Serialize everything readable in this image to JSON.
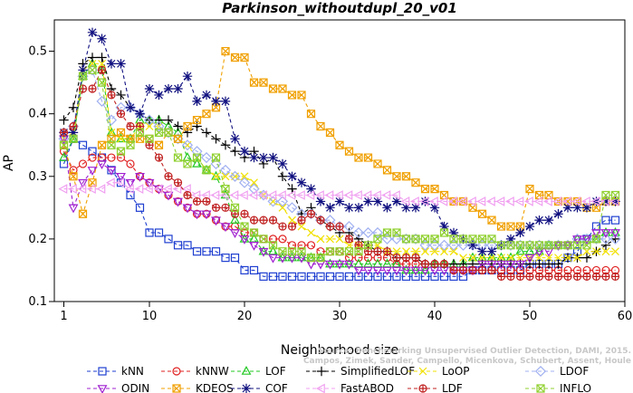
{
  "chart_data": {
    "type": "line",
    "title": "Parkinson_withoutdupl_20_v01",
    "xlabel": "Neighborhood size",
    "ylabel": "AP",
    "xlim": [
      0,
      60
    ],
    "ylim": [
      0.1,
      0.55
    ],
    "xticks": [
      1,
      10,
      20,
      30,
      40,
      50,
      60
    ],
    "yticks": [
      0.1,
      0.2,
      0.3,
      0.4,
      0.5
    ],
    "grid": false,
    "legend_position": "bottom",
    "watermark": [
      "Source: Benchmarking Unsupervised Outlier Detection, DAMI, 2015.",
      "Campos, Zimek, Sander, Campello, Micenkova, Schubert, Assent, Houle"
    ],
    "series": [
      {
        "name": "kNN",
        "color": "#1f3fd0",
        "marker": "square",
        "values": [
          0.32,
          0.36,
          0.35,
          0.34,
          0.33,
          0.31,
          0.29,
          0.27,
          0.25,
          0.21,
          0.21,
          0.2,
          0.19,
          0.19,
          0.18,
          0.18,
          0.18,
          0.17,
          0.17,
          0.15,
          0.15,
          0.14,
          0.14,
          0.14,
          0.14,
          0.14,
          0.14,
          0.14,
          0.14,
          0.14,
          0.14,
          0.14,
          0.14,
          0.14,
          0.14,
          0.14,
          0.14,
          0.14,
          0.14,
          0.14,
          0.14,
          0.14,
          0.14,
          0.15,
          0.15,
          0.15,
          0.15,
          0.15,
          0.15,
          0.16,
          0.16,
          0.16,
          0.16,
          0.17,
          0.18,
          0.2,
          0.22,
          0.23,
          0.23
        ]
      },
      {
        "name": "kNNW",
        "color": "#e02020",
        "marker": "circle",
        "values": [
          0.34,
          0.31,
          0.32,
          0.33,
          0.33,
          0.33,
          0.33,
          0.32,
          0.3,
          0.29,
          0.28,
          0.27,
          0.26,
          0.25,
          0.24,
          0.24,
          0.23,
          0.22,
          0.22,
          0.21,
          0.21,
          0.2,
          0.2,
          0.2,
          0.19,
          0.19,
          0.19,
          0.18,
          0.18,
          0.18,
          0.17,
          0.17,
          0.17,
          0.17,
          0.17,
          0.16,
          0.16,
          0.16,
          0.16,
          0.16,
          0.16,
          0.15,
          0.15,
          0.15,
          0.15,
          0.15,
          0.15,
          0.15,
          0.15,
          0.15,
          0.15,
          0.15,
          0.15,
          0.15,
          0.15,
          0.15,
          0.15,
          0.15,
          0.15
        ]
      },
      {
        "name": "LOF",
        "color": "#22c822",
        "marker": "triangle-up",
        "values": [
          0.33,
          0.36,
          0.46,
          0.48,
          0.47,
          0.37,
          0.36,
          0.36,
          0.39,
          0.39,
          0.39,
          0.38,
          0.37,
          0.33,
          0.32,
          0.31,
          0.3,
          0.27,
          0.23,
          0.2,
          0.2,
          0.18,
          0.18,
          0.17,
          0.17,
          0.17,
          0.17,
          0.17,
          0.16,
          0.16,
          0.16,
          0.16,
          0.16,
          0.16,
          0.16,
          0.16,
          0.15,
          0.15,
          0.15,
          0.16,
          0.16,
          0.16,
          0.16,
          0.17,
          0.17,
          0.17,
          0.17,
          0.17,
          0.18,
          0.18,
          0.18,
          0.19,
          0.19,
          0.19,
          0.2,
          0.2,
          0.2,
          0.21,
          0.21
        ]
      },
      {
        "name": "SimplifiedLOF",
        "color": "#000000",
        "marker": "plus",
        "values": [
          0.39,
          0.41,
          0.48,
          0.49,
          0.49,
          0.44,
          0.43,
          0.41,
          0.4,
          0.39,
          0.39,
          0.39,
          0.38,
          0.37,
          0.38,
          0.37,
          0.36,
          0.35,
          0.34,
          0.33,
          0.34,
          0.32,
          0.33,
          0.3,
          0.28,
          0.24,
          0.25,
          0.23,
          0.22,
          0.21,
          0.21,
          0.2,
          0.19,
          0.18,
          0.18,
          0.17,
          0.17,
          0.17,
          0.16,
          0.16,
          0.16,
          0.16,
          0.16,
          0.16,
          0.16,
          0.16,
          0.16,
          0.16,
          0.16,
          0.16,
          0.16,
          0.16,
          0.16,
          0.17,
          0.17,
          0.17,
          0.18,
          0.19,
          0.2
        ]
      },
      {
        "name": "LoOP",
        "color": "#f0e000",
        "marker": "x",
        "values": [
          0.36,
          0.37,
          0.47,
          0.48,
          0.48,
          0.37,
          0.36,
          0.36,
          0.38,
          0.38,
          0.38,
          0.37,
          0.36,
          0.35,
          0.33,
          0.31,
          0.3,
          0.3,
          0.3,
          0.3,
          0.29,
          0.27,
          0.26,
          0.25,
          0.23,
          0.22,
          0.21,
          0.2,
          0.2,
          0.2,
          0.19,
          0.19,
          0.19,
          0.19,
          0.18,
          0.18,
          0.18,
          0.18,
          0.18,
          0.18,
          0.18,
          0.18,
          0.17,
          0.17,
          0.17,
          0.17,
          0.17,
          0.17,
          0.17,
          0.17,
          0.17,
          0.17,
          0.17,
          0.17,
          0.17,
          0.18,
          0.18,
          0.18,
          0.18
        ]
      },
      {
        "name": "LDOF",
        "color": "#a0b0f0",
        "marker": "diamond",
        "values": [
          0.36,
          0.38,
          0.46,
          0.47,
          0.42,
          0.39,
          0.41,
          0.41,
          0.4,
          0.39,
          0.38,
          0.37,
          0.36,
          0.35,
          0.34,
          0.33,
          0.32,
          0.31,
          0.3,
          0.29,
          0.28,
          0.27,
          0.26,
          0.26,
          0.25,
          0.24,
          0.24,
          0.23,
          0.23,
          0.22,
          0.22,
          0.21,
          0.21,
          0.21,
          0.2,
          0.2,
          0.2,
          0.2,
          0.19,
          0.19,
          0.19,
          0.19,
          0.19,
          0.19,
          0.19,
          0.19,
          0.19,
          0.19,
          0.19,
          0.19,
          0.19,
          0.19,
          0.19,
          0.19,
          0.2,
          0.2,
          0.2,
          0.2,
          0.2
        ]
      },
      {
        "name": "ODIN",
        "color": "#a020d0",
        "marker": "triangle-down",
        "values": [
          0.36,
          0.25,
          0.29,
          0.31,
          0.32,
          0.31,
          0.3,
          0.29,
          0.3,
          0.29,
          0.28,
          0.27,
          0.26,
          0.25,
          0.24,
          0.24,
          0.23,
          0.22,
          0.21,
          0.2,
          0.19,
          0.18,
          0.17,
          0.17,
          0.17,
          0.17,
          0.16,
          0.16,
          0.16,
          0.16,
          0.16,
          0.15,
          0.15,
          0.15,
          0.15,
          0.15,
          0.15,
          0.15,
          0.15,
          0.15,
          0.15,
          0.15,
          0.15,
          0.15,
          0.16,
          0.16,
          0.16,
          0.16,
          0.16,
          0.17,
          0.18,
          0.18,
          0.19,
          0.19,
          0.2,
          0.2,
          0.21,
          0.21,
          0.21
        ]
      },
      {
        "name": "KDEOS",
        "color": "#f0a000",
        "marker": "square-x",
        "values": [
          0.35,
          0.3,
          0.24,
          0.29,
          0.35,
          0.36,
          0.37,
          0.36,
          0.36,
          0.36,
          0.35,
          0.37,
          0.36,
          0.38,
          0.39,
          0.4,
          0.41,
          0.5,
          0.49,
          0.49,
          0.45,
          0.45,
          0.44,
          0.44,
          0.43,
          0.43,
          0.4,
          0.38,
          0.37,
          0.35,
          0.34,
          0.33,
          0.33,
          0.32,
          0.31,
          0.3,
          0.3,
          0.29,
          0.28,
          0.28,
          0.27,
          0.26,
          0.26,
          0.25,
          0.24,
          0.23,
          0.22,
          0.22,
          0.22,
          0.28,
          0.27,
          0.27,
          0.26,
          0.26,
          0.26,
          0.25,
          0.25,
          0.26,
          0.26
        ]
      },
      {
        "name": "COF",
        "color": "#101080",
        "marker": "star",
        "values": [
          0.37,
          0.37,
          0.47,
          0.53,
          0.52,
          0.48,
          0.48,
          0.41,
          0.4,
          0.44,
          0.43,
          0.44,
          0.44,
          0.46,
          0.42,
          0.43,
          0.42,
          0.42,
          0.36,
          0.34,
          0.33,
          0.33,
          0.33,
          0.32,
          0.3,
          0.29,
          0.28,
          0.26,
          0.25,
          0.26,
          0.25,
          0.25,
          0.26,
          0.26,
          0.25,
          0.26,
          0.25,
          0.25,
          0.26,
          0.25,
          0.22,
          0.21,
          0.2,
          0.19,
          0.18,
          0.18,
          0.19,
          0.2,
          0.21,
          0.22,
          0.23,
          0.23,
          0.24,
          0.25,
          0.25,
          0.25,
          0.26,
          0.26,
          0.26
        ]
      },
      {
        "name": "FastABOD",
        "color": "#f0a0f0",
        "marker": "triangle-left",
        "values": [
          0.28,
          0.28,
          0.28,
          0.28,
          0.28,
          0.29,
          0.29,
          0.28,
          0.28,
          0.28,
          0.28,
          0.28,
          0.28,
          0.28,
          0.27,
          0.27,
          0.27,
          0.27,
          0.27,
          0.27,
          0.27,
          0.27,
          0.27,
          0.27,
          0.27,
          0.27,
          0.27,
          0.27,
          0.27,
          0.27,
          0.27,
          0.27,
          0.27,
          0.27,
          0.27,
          0.27,
          0.26,
          0.26,
          0.26,
          0.26,
          0.26,
          0.26,
          0.26,
          0.26,
          0.26,
          0.26,
          0.26,
          0.26,
          0.26,
          0.26,
          0.26,
          0.26,
          0.26,
          0.26,
          0.26,
          0.26,
          0.26,
          0.26,
          0.26
        ]
      },
      {
        "name": "LDF",
        "color": "#c02020",
        "marker": "circle-plus",
        "values": [
          0.37,
          0.38,
          0.44,
          0.44,
          0.47,
          0.43,
          0.4,
          0.38,
          0.38,
          0.35,
          0.33,
          0.3,
          0.29,
          0.27,
          0.26,
          0.26,
          0.25,
          0.25,
          0.24,
          0.24,
          0.23,
          0.23,
          0.23,
          0.22,
          0.22,
          0.23,
          0.24,
          0.23,
          0.22,
          0.22,
          0.2,
          0.19,
          0.18,
          0.18,
          0.18,
          0.17,
          0.17,
          0.17,
          0.16,
          0.16,
          0.16,
          0.15,
          0.15,
          0.15,
          0.15,
          0.15,
          0.14,
          0.14,
          0.14,
          0.14,
          0.14,
          0.14,
          0.14,
          0.14,
          0.14,
          0.14,
          0.14,
          0.14,
          0.14
        ]
      },
      {
        "name": "INFLO",
        "color": "#90d030",
        "marker": "square-x",
        "values": [
          0.35,
          0.36,
          0.46,
          0.47,
          0.45,
          0.35,
          0.34,
          0.35,
          0.37,
          0.36,
          0.37,
          0.37,
          0.33,
          0.32,
          0.33,
          0.31,
          0.33,
          0.28,
          0.25,
          0.22,
          0.21,
          0.2,
          0.19,
          0.18,
          0.18,
          0.18,
          0.17,
          0.17,
          0.18,
          0.18,
          0.18,
          0.18,
          0.19,
          0.2,
          0.21,
          0.21,
          0.2,
          0.2,
          0.2,
          0.2,
          0.21,
          0.2,
          0.2,
          0.2,
          0.2,
          0.2,
          0.19,
          0.19,
          0.19,
          0.19,
          0.19,
          0.19,
          0.19,
          0.19,
          0.19,
          0.19,
          0.2,
          0.27,
          0.27
        ]
      }
    ],
    "legend_rows": [
      [
        "kNN",
        "kNNW",
        "LOF",
        "SimplifiedLOF",
        "LoOP",
        "LDOF"
      ],
      [
        "ODIN",
        "KDEOS",
        "COF",
        "FastABOD",
        "LDF",
        "INFLO"
      ]
    ]
  }
}
